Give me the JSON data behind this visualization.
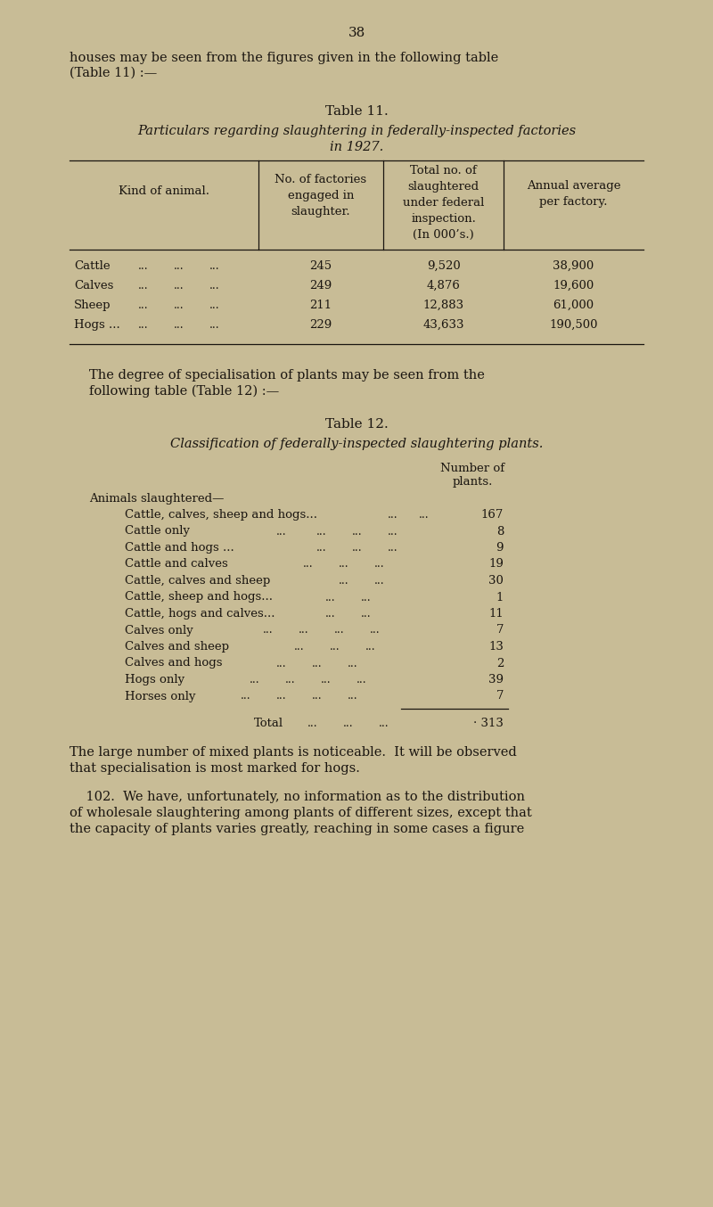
{
  "bg_color": "#c8bc96",
  "text_color": "#1a1510",
  "page_number": "38",
  "intro_text_line1": "houses may be seen from the figures given in the following table",
  "intro_text_line2": "(Table 11) :—",
  "table11_title": "Table 11.",
  "table11_subtitle_line1": "Particulars regarding slaughtering in federally-inspected factories",
  "table11_subtitle_line2": "in 1927.",
  "t11_col1_header": "Kind of animal.",
  "t11_col2_header": "No. of factories\nengaged in\nslaughter.",
  "t11_col3_header": "Total no. of\nslaughtered\nunder federal\ninspection.\n(In 000’s.)",
  "t11_col4_header": "Annual average\nper factory.",
  "t11_rows": [
    [
      "Cattle",
      "245",
      "9,520",
      "38,900"
    ],
    [
      "Calves",
      "249",
      "4,876",
      "19,600"
    ],
    [
      "Sheep",
      "211",
      "12,883",
      "61,000"
    ],
    [
      "Hogs ...",
      "229",
      "43,633",
      "190,500"
    ]
  ],
  "intertext_line1": "The degree of specialisation of plants may be seen from the",
  "intertext_line2": "following table (Table 12) :—",
  "table12_title": "Table 12.",
  "table12_subtitle": "Classification of federally-inspected slaughtering plants.",
  "t12_header_left": "Animals slaughtered—",
  "t12_header_right_line1": "Number of",
  "t12_header_right_line2": "plants.",
  "t12_rows": [
    {
      "label": "Cattle, calves, sheep and hogs...",
      "dots": "...",
      "value": "167"
    },
    {
      "label": "Cattle only",
      "dots": "...   ...   ...   ...",
      "value": "8"
    },
    {
      "label": "Cattle and hogs ...",
      "dots": "...   ...   ...",
      "value": "9"
    },
    {
      "label": "Cattle and calves",
      "dots": "...   ...   ...",
      "value": "19"
    },
    {
      "label": "Cattle, calves and sheep",
      "dots": "...   ...",
      "value": "30"
    },
    {
      "label": "Cattle, sheep and hogs...",
      "dots": "...   ...",
      "value": "1"
    },
    {
      "label": "Cattle, hogs and calves...",
      "dots": "...   ...",
      "value": "11"
    },
    {
      "label": "Calves only",
      "dots": "...   ...   ...   ...",
      "value": "7"
    },
    {
      "label": "Calves and sheep",
      "dots": "...   ...   ...",
      "value": "13"
    },
    {
      "label": "Calves and hogs",
      "dots": "...   ...   ...",
      "value": "2"
    },
    {
      "label": "Hogs only",
      "dots": "...   ...   ...   ...",
      "value": "39"
    },
    {
      "label": "Horses only",
      "dots": "...   ...   ...   ...",
      "value": "7"
    }
  ],
  "t12_total_label": "Total",
  "t12_total_dots": "...   ...   ...",
  "t12_total_value": "· 313",
  "closing1_line1": "The large number of mixed plants is noticeable.  It will be observed",
  "closing1_line2": "that specialisation is most marked for hogs.",
  "closing2_line1": "    102.  We have, unfortunately, no information as to the distribution",
  "closing2_line2": "of wholesale slaughtering among plants of different sizes, except that",
  "closing2_line3": "the capacity of plants varies greatly, reaching in some cases a figure"
}
